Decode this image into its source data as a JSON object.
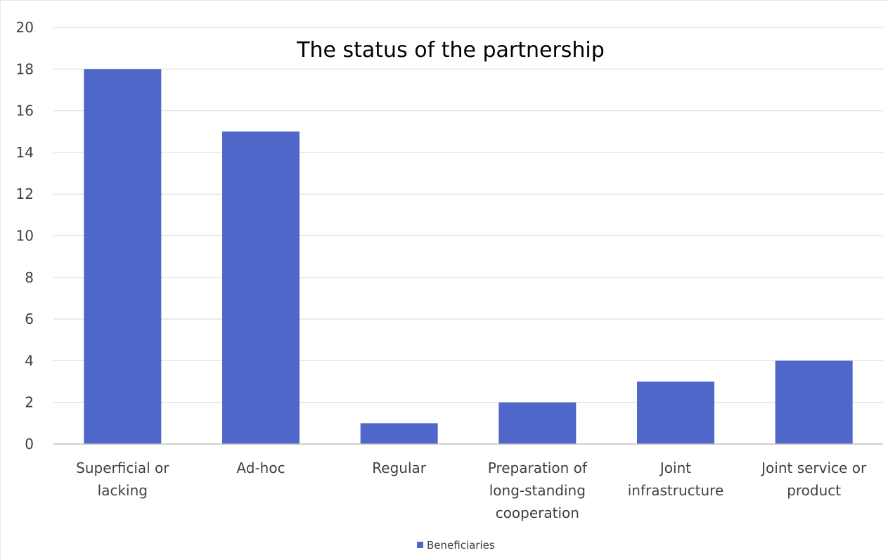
{
  "chart_data": {
    "type": "bar",
    "title": "The status of the partnership",
    "xlabel": "",
    "ylabel": "",
    "categories": [
      "Superficial or lacking",
      "Ad-hoc",
      "Regular",
      "Preparation of long-standing cooperation",
      "Joint infrastructure",
      "Joint service or product"
    ],
    "series": [
      {
        "name": "Beneficiaries",
        "values": [
          18,
          15,
          1,
          2,
          3,
          4
        ]
      }
    ],
    "ylim": [
      0,
      20
    ],
    "yticks": [
      0,
      2,
      4,
      6,
      8,
      10,
      12,
      14,
      16,
      18,
      20
    ],
    "grid": true,
    "legend_position": "bottom",
    "colors": {
      "bar": "#4e67c8"
    }
  }
}
